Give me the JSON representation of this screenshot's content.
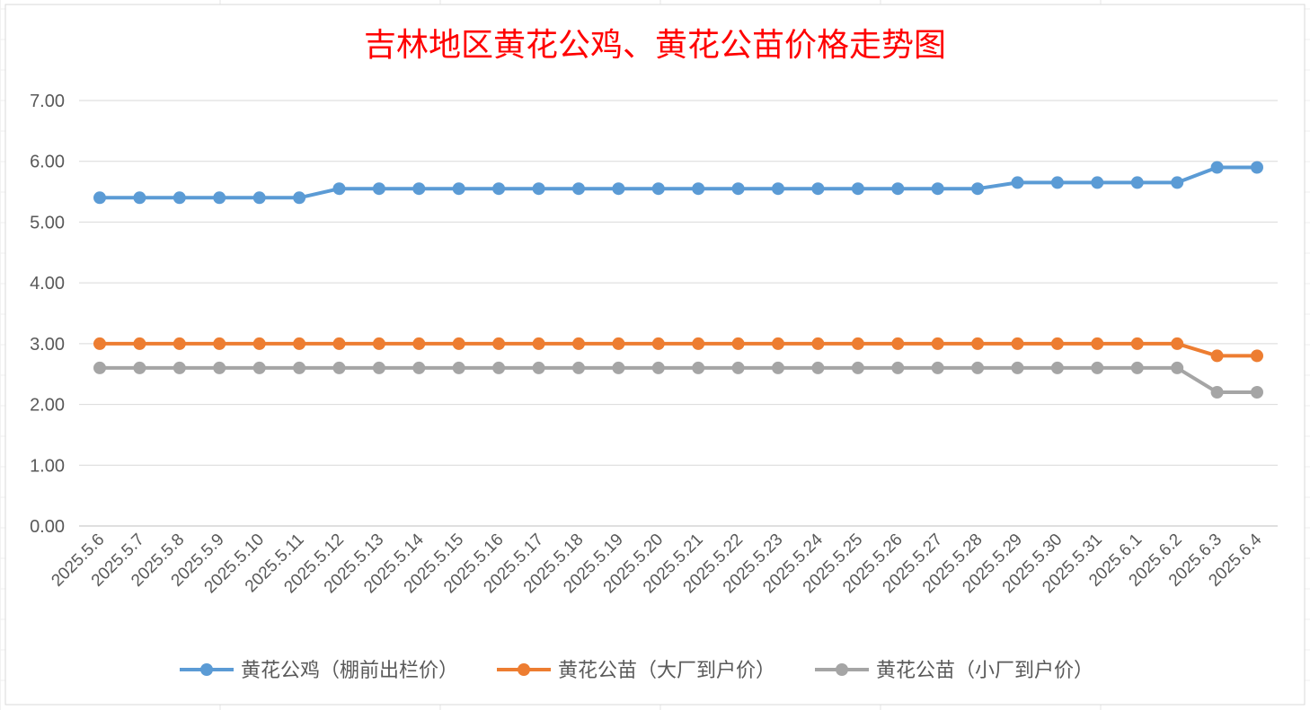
{
  "chart_data": {
    "type": "line",
    "title": "吉林地区黄花公鸡、黄花公苗价格走势图",
    "xlabel": "",
    "ylabel": "",
    "ylim": [
      0,
      7
    ],
    "y_tick_labels": [
      "0.00",
      "1.00",
      "2.00",
      "3.00",
      "4.00",
      "5.00",
      "6.00",
      "7.00"
    ],
    "grid": true,
    "legend_position": "bottom",
    "categories": [
      "2025.5.6",
      "2025.5.7",
      "2025.5.8",
      "2025.5.9",
      "2025.5.10",
      "2025.5.11",
      "2025.5.12",
      "2025.5.13",
      "2025.5.14",
      "2025.5.15",
      "2025.5.16",
      "2025.5.17",
      "2025.5.18",
      "2025.5.19",
      "2025.5.20",
      "2025.5.21",
      "2025.5.22",
      "2025.5.23",
      "2025.5.24",
      "2025.5.25",
      "2025.5.26",
      "2025.5.27",
      "2025.5.28",
      "2025.5.29",
      "2025.5.30",
      "2025.5.31",
      "2025.6.1",
      "2025.6.2",
      "2025.6.3",
      "2025.6.4"
    ],
    "series": [
      {
        "name": "黄花公鸡（棚前出栏价）",
        "color": "#5B9BD5",
        "values": [
          5.4,
          5.4,
          5.4,
          5.4,
          5.4,
          5.4,
          5.55,
          5.55,
          5.55,
          5.55,
          5.55,
          5.55,
          5.55,
          5.55,
          5.55,
          5.55,
          5.55,
          5.55,
          5.55,
          5.55,
          5.55,
          5.55,
          5.55,
          5.65,
          5.65,
          5.65,
          5.65,
          5.65,
          5.9,
          5.9
        ]
      },
      {
        "name": "黄花公苗（大厂到户价）",
        "color": "#ED7D31",
        "values": [
          3.0,
          3.0,
          3.0,
          3.0,
          3.0,
          3.0,
          3.0,
          3.0,
          3.0,
          3.0,
          3.0,
          3.0,
          3.0,
          3.0,
          3.0,
          3.0,
          3.0,
          3.0,
          3.0,
          3.0,
          3.0,
          3.0,
          3.0,
          3.0,
          3.0,
          3.0,
          3.0,
          3.0,
          2.8,
          2.8
        ]
      },
      {
        "name": "黄花公苗（小厂到户价）",
        "color": "#A5A5A5",
        "values": [
          2.6,
          2.6,
          2.6,
          2.6,
          2.6,
          2.6,
          2.6,
          2.6,
          2.6,
          2.6,
          2.6,
          2.6,
          2.6,
          2.6,
          2.6,
          2.6,
          2.6,
          2.6,
          2.6,
          2.6,
          2.6,
          2.6,
          2.6,
          2.6,
          2.6,
          2.6,
          2.6,
          2.6,
          2.2,
          2.2
        ]
      }
    ],
    "colors": {
      "title": "#FF0000",
      "gridline": "#D9D9D9",
      "axis_text": "#595959"
    }
  }
}
